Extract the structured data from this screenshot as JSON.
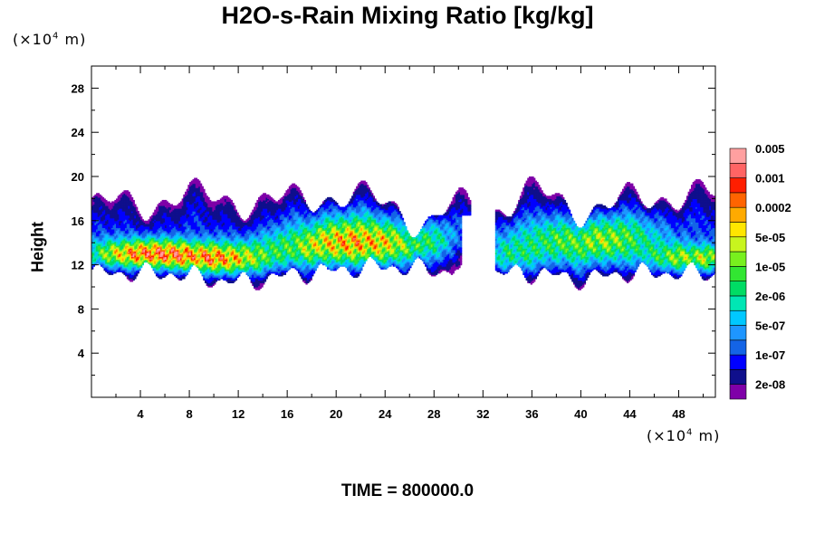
{
  "chart_data": {
    "type": "heatmap",
    "title": "H2O-s-Rain Mixing Ratio [kg/kg]",
    "ylabel": "Height",
    "xlabel": "",
    "x_unit": {
      "prefix": "(×10",
      "exp": "4",
      "suffix": " m)"
    },
    "y_unit": {
      "prefix": "(×10",
      "exp": "4",
      "suffix": " m)"
    },
    "xlim": [
      0,
      51
    ],
    "ylim": [
      0,
      30
    ],
    "xticks": [
      4,
      8,
      12,
      16,
      20,
      24,
      28,
      32,
      36,
      40,
      44,
      48
    ],
    "yticks": [
      4,
      8,
      12,
      16,
      20,
      24,
      28
    ],
    "grid": false,
    "colorbar": {
      "colors": [
        "#7f00a8",
        "#0f0f8c",
        "#0000ff",
        "#1464e6",
        "#1e96ff",
        "#00c8ff",
        "#00e6b4",
        "#00dc64",
        "#32e632",
        "#78f01e",
        "#c8f51e",
        "#ffe600",
        "#ffaa00",
        "#ff6400",
        "#ff1e00",
        "#ff6464",
        "#ffa0a0"
      ],
      "labels": [
        "2e-08",
        "1e-07",
        "5e-07",
        "2e-06",
        "1e-05",
        "5e-05",
        "0.0002",
        "0.001",
        "0.005"
      ],
      "label_bins": [
        1,
        3,
        5,
        7,
        9,
        11,
        13,
        15,
        17
      ]
    },
    "field_description": "Rain mixing ratio layer between ~11 and ~19 (x10^4 m) height; maxima near x=4-8 at height 12-13 and x=47-51; gap near x=30-32"
  },
  "footer": {
    "time_label": "TIME = 800000.0"
  }
}
